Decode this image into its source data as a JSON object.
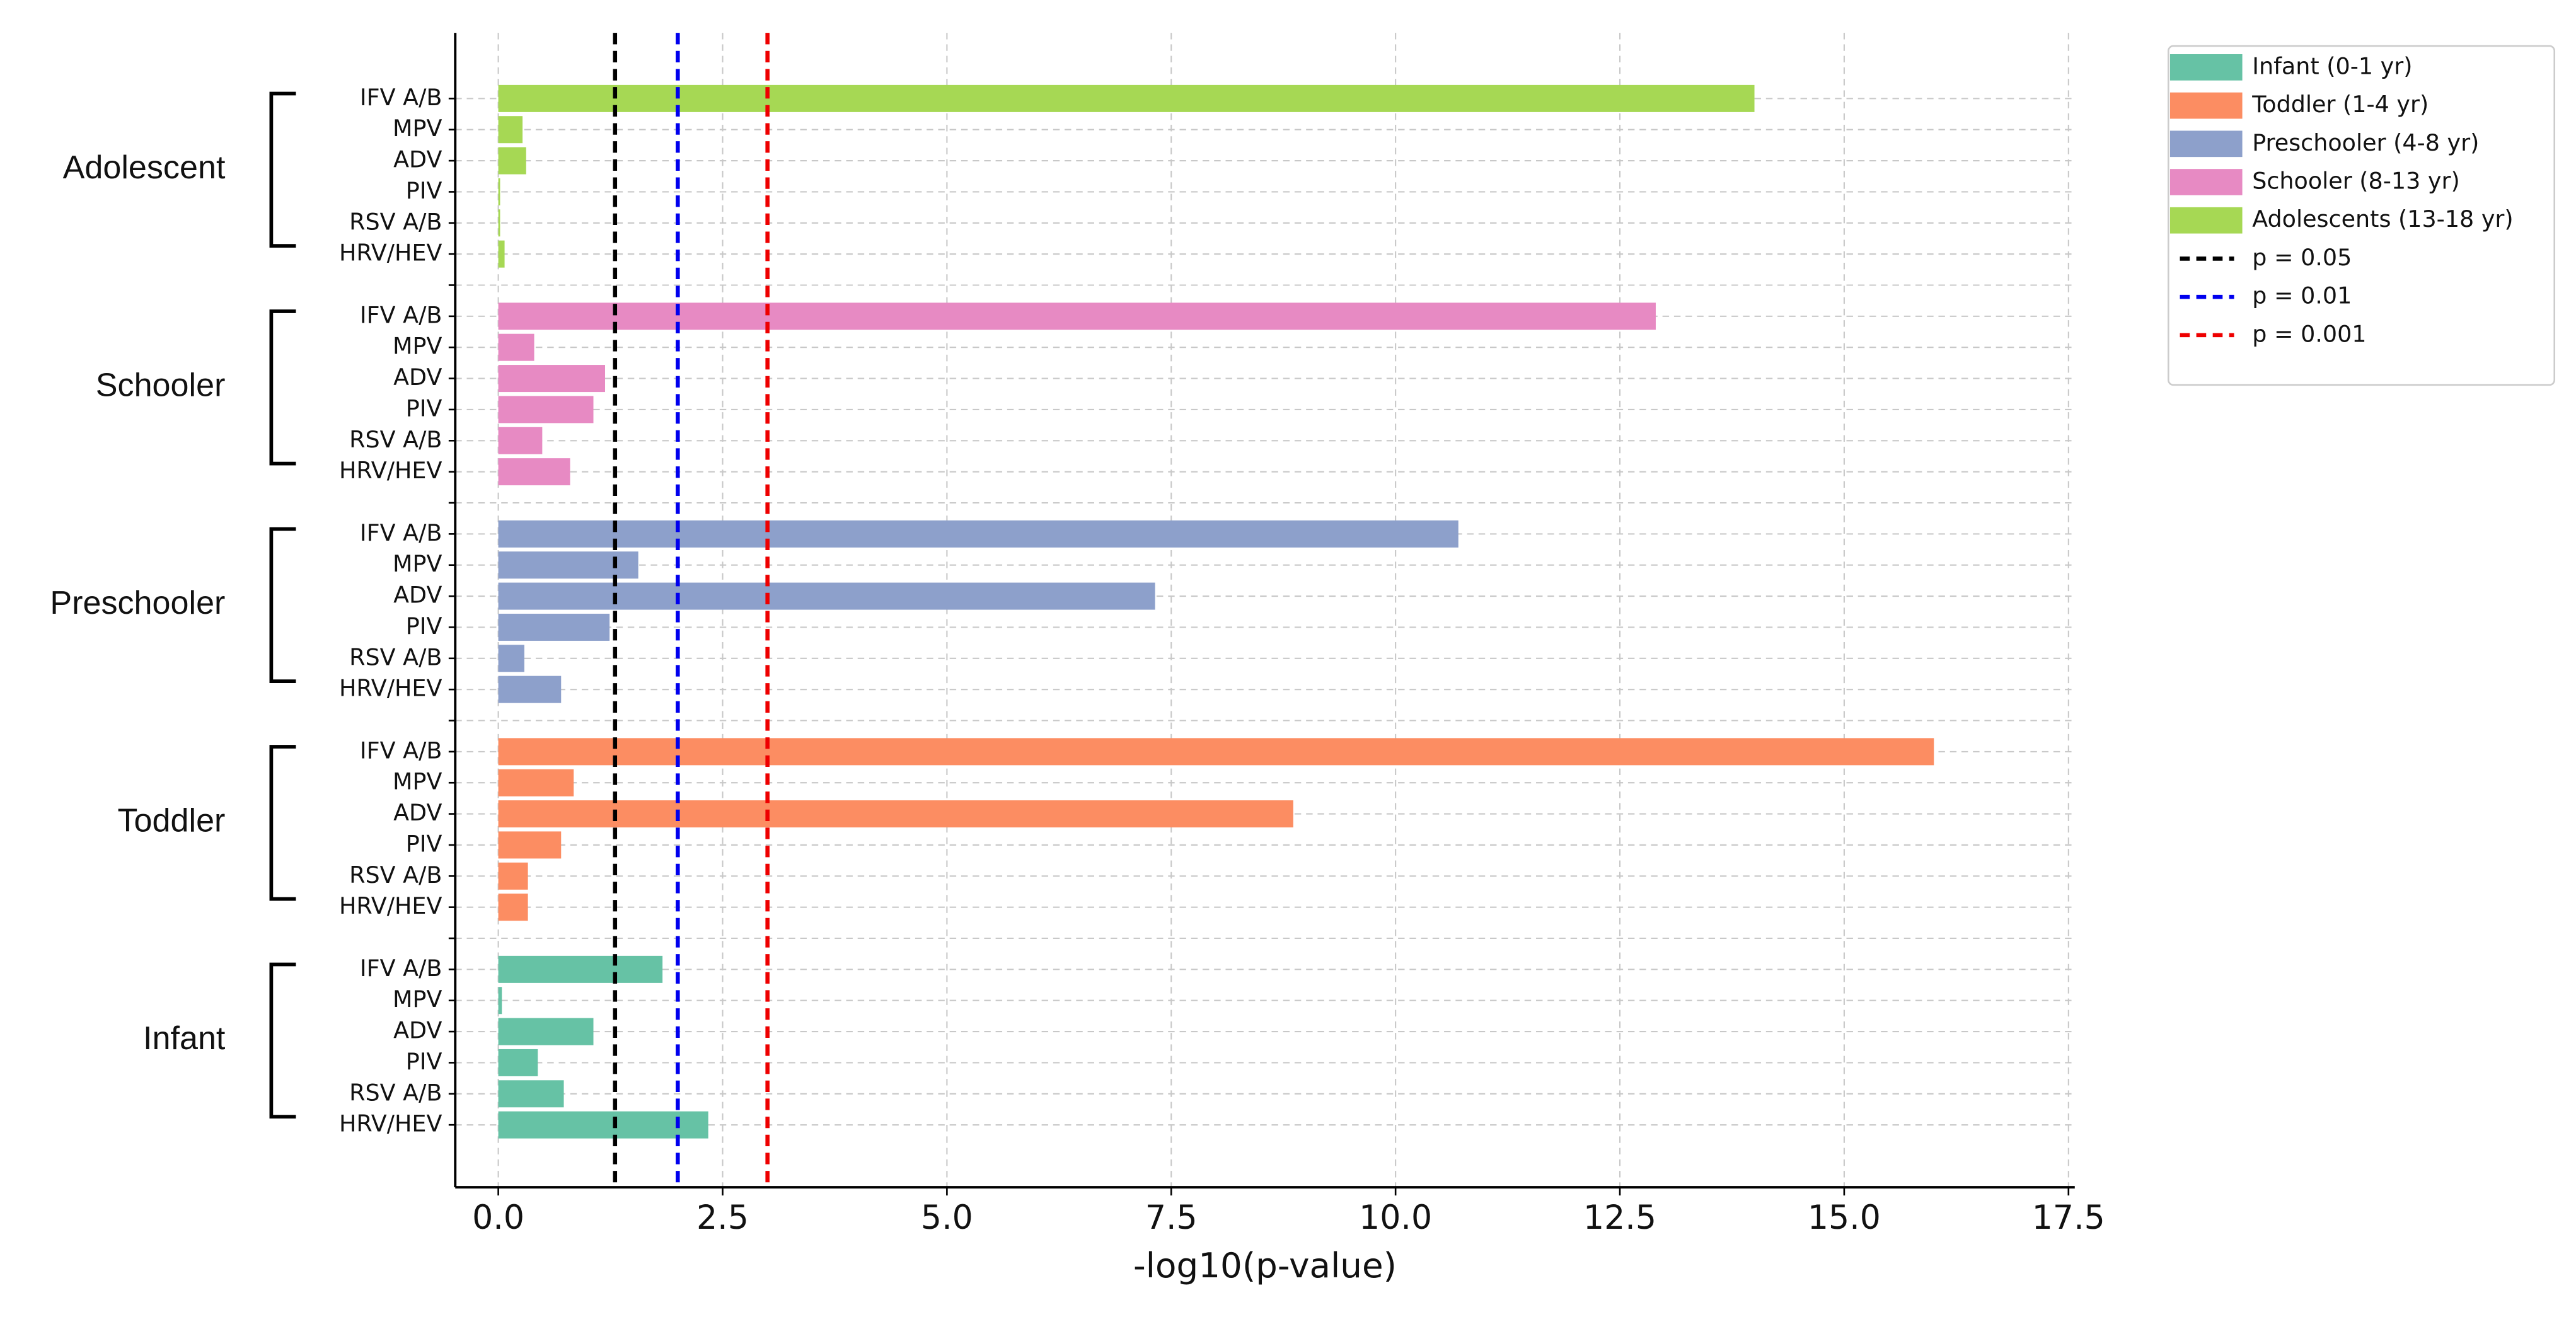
{
  "chart_data": {
    "type": "bar",
    "orientation": "horizontal",
    "categories": [
      "IFV A/B",
      "MPV",
      "ADV",
      "PIV",
      "RSV A/B",
      "HRV/HEV"
    ],
    "series": [
      {
        "name": "Infant (0-1 yr)",
        "group": "Infant",
        "color": "#66c2a5",
        "values": [
          1.83,
          0.04,
          1.06,
          0.44,
          0.73,
          2.34
        ]
      },
      {
        "name": "Toddler (1-4 yr)",
        "group": "Toddler",
        "color": "#fc8d62",
        "values": [
          16.0,
          0.84,
          8.86,
          0.7,
          0.33,
          0.33
        ]
      },
      {
        "name": "Preschooler (4-8 yr)",
        "group": "Preschooler",
        "color": "#8da0cb",
        "values": [
          10.7,
          1.56,
          7.32,
          1.24,
          0.29,
          0.7
        ]
      },
      {
        "name": "Schooler (8-13 yr)",
        "group": "Schooler",
        "color": "#e78ac3",
        "values": [
          12.9,
          0.4,
          1.19,
          1.06,
          0.49,
          0.8
        ]
      },
      {
        "name": "Adolescents (13-18 yr)",
        "group": "Adolescent",
        "color": "#a6d854",
        "values": [
          14.0,
          0.27,
          0.31,
          0.02,
          0.02,
          0.07
        ]
      }
    ],
    "thresholds": [
      {
        "name": "p = 0.05",
        "value": 1.301,
        "color": "#000000"
      },
      {
        "name": "p = 0.01",
        "value": 2,
        "color": "#0000ee"
      },
      {
        "name": "p = 0.001",
        "value": 3,
        "color": "#ee0000"
      }
    ],
    "xlabel": "-log10(p-value)",
    "xlim": [
      -0.48,
      17.57
    ],
    "xticks": [
      {
        "value": 0,
        "label": "0.0"
      },
      2.5,
      {
        "value": 5,
        "label": "5.0"
      },
      7.5,
      {
        "value": 10,
        "label": "10.0"
      },
      12.5,
      {
        "value": 15,
        "label": "15.0"
      },
      17.5
    ],
    "grid": true,
    "legend": "outside upper right"
  }
}
